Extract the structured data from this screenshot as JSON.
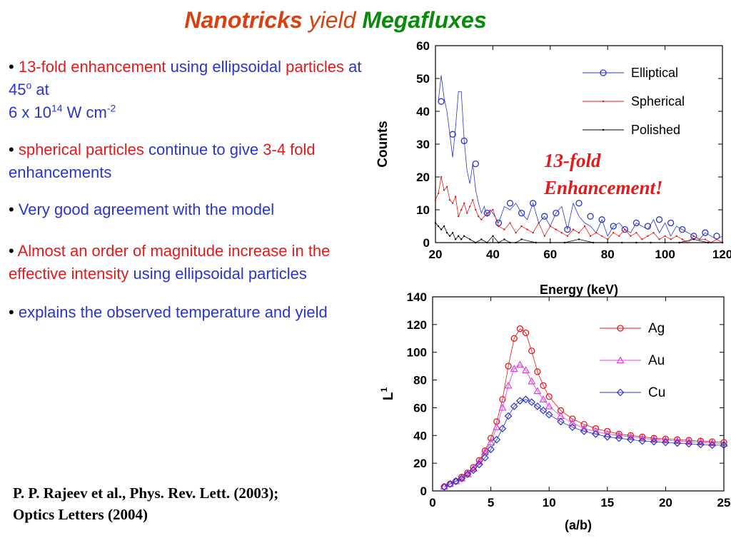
{
  "title": {
    "part1": "Nanotricks",
    "part2": "yield",
    "part3": "Megafluxes"
  },
  "bullets": {
    "b1": {
      "bullet": "•",
      "red1": "13-fold enhancement",
      "blue1": "using ellipsoidal",
      "red2": "particles",
      "blue2": "at 45",
      "sup1": "o",
      "blue3": "at",
      "blue4": "6 x 10",
      "sup2": "14",
      "blue5": "W cm",
      "sup3": "-2"
    },
    "b2": {
      "bullet": "•",
      "red1": "spherical particles",
      "blue1": "continue to give",
      "red2": "3-4 fold",
      "blue2": "enhancements"
    },
    "b3": {
      "bullet": "•",
      "blue1": "Very good agreement with the model"
    },
    "b4": {
      "bullet": "•",
      "red1": "Almost an order of magnitude increase in the effective intensity",
      "blue1": "using ellipsoidal particles"
    },
    "b5": {
      "bullet": "•",
      "blue1": "explains the observed temperature and yield"
    }
  },
  "reference": {
    "line1": "P. P. Rajeev et al., Phys. Rev. Lett. (2003);",
    "line2": "Optics Letters (2004)"
  },
  "annotation": {
    "line1": "13-fold",
    "line2": "Enhancement!"
  },
  "chart_data": [
    {
      "type": "line",
      "xlabel": "Energy (keV)",
      "ylabel": "Counts",
      "xlim": [
        20,
        120
      ],
      "ylim": [
        0,
        60
      ],
      "xticks": [
        20,
        40,
        60,
        80,
        100,
        120
      ],
      "yticks": [
        0,
        10,
        20,
        30,
        40,
        50,
        60
      ],
      "legend_position": "top-right",
      "series": [
        {
          "name": "Elliptical",
          "color": "#2b35c8",
          "marker": "circle",
          "x": [
            21,
            22,
            23,
            24,
            25,
            26,
            27,
            28,
            29,
            30,
            31,
            32,
            33,
            34,
            35,
            36,
            37,
            38,
            39,
            40,
            42,
            44,
            46,
            48,
            50,
            52,
            54,
            56,
            58,
            60,
            62,
            64,
            66,
            68,
            70,
            72,
            74,
            76,
            78,
            80,
            82,
            84,
            86,
            88,
            90,
            92,
            94,
            96,
            98,
            100,
            102,
            104,
            106,
            108,
            110,
            112,
            114,
            116,
            118,
            120
          ],
          "y": [
            43,
            51,
            44,
            40,
            33,
            26,
            35,
            46,
            46,
            31,
            22,
            18,
            24,
            16,
            12,
            9,
            11,
            8,
            10,
            9,
            6,
            11,
            10,
            12,
            9,
            7,
            12,
            6,
            8,
            5,
            9,
            11,
            4,
            12,
            8,
            6,
            5,
            3,
            7,
            2,
            5,
            6,
            4,
            3,
            6,
            5,
            4,
            7,
            3,
            6,
            2,
            5,
            4,
            3,
            2,
            1,
            3,
            2,
            1,
            2
          ],
          "marker_x": [
            22,
            26,
            30,
            34,
            38,
            42,
            46,
            50,
            54,
            58,
            62,
            66,
            70,
            74,
            78,
            82,
            86,
            90,
            94,
            98,
            102,
            106,
            110,
            114,
            118
          ],
          "marker_y": [
            43,
            33,
            31,
            24,
            9,
            6,
            12,
            9,
            12,
            8,
            9,
            4,
            12,
            8,
            7,
            5,
            4,
            6,
            5,
            7,
            6,
            4,
            2,
            3,
            2
          ]
        },
        {
          "name": "Spherical",
          "color": "#e31a1c",
          "marker": "dot",
          "x": [
            20,
            21,
            22,
            23,
            24,
            25,
            26,
            27,
            28,
            29,
            30,
            31,
            32,
            33,
            34,
            35,
            36,
            38,
            40,
            42,
            44,
            46,
            48,
            50,
            52,
            54,
            56,
            58,
            60,
            62,
            64,
            66,
            68,
            70,
            72,
            74,
            76,
            78,
            80,
            82,
            84,
            86,
            88,
            90,
            92,
            94,
            96,
            98,
            100,
            102,
            104,
            106,
            108,
            110,
            112,
            114,
            116,
            118,
            120
          ],
          "y": [
            13,
            15,
            20,
            16,
            17,
            13,
            12,
            14,
            8,
            10,
            12,
            9,
            11,
            13,
            10,
            8,
            7,
            9,
            10,
            5,
            4,
            6,
            3,
            5,
            4,
            3,
            6,
            2,
            5,
            4,
            3,
            2,
            4,
            3,
            5,
            2,
            3,
            2,
            1,
            3,
            2,
            4,
            2,
            3,
            1,
            2,
            3,
            1,
            2,
            1,
            2,
            1,
            0,
            2,
            1,
            1,
            0,
            1,
            0
          ]
        },
        {
          "name": "Polished",
          "color": "#000000",
          "marker": "dot",
          "x": [
            20,
            21,
            22,
            23,
            24,
            25,
            26,
            27,
            28,
            29,
            30,
            32,
            34,
            36,
            38,
            40,
            42,
            44,
            46,
            48,
            50,
            55,
            60,
            65,
            70,
            75,
            80,
            85,
            90,
            95,
            100,
            105,
            110,
            115,
            120
          ],
          "y": [
            6,
            5,
            4,
            5,
            3,
            2,
            3,
            1,
            2,
            1,
            2,
            1,
            0,
            1,
            0,
            2,
            0,
            1,
            0,
            0,
            1,
            0,
            0,
            0,
            1,
            0,
            0,
            0,
            0,
            0,
            0,
            0,
            1,
            0,
            0
          ]
        }
      ]
    },
    {
      "type": "line",
      "xlabel": "(a/b)",
      "ylabel": "L",
      "ylabel_sup": "1",
      "xlim": [
        0,
        25
      ],
      "ylim": [
        0,
        140
      ],
      "xticks": [
        0,
        5,
        10,
        15,
        20,
        25
      ],
      "yticks": [
        0,
        20,
        40,
        60,
        80,
        100,
        120,
        140
      ],
      "legend_position": "top-right",
      "series": [
        {
          "name": "Ag",
          "color": "#e31a1c",
          "marker": "circle",
          "x": [
            1,
            1.5,
            2,
            2.5,
            3,
            3.5,
            4,
            4.5,
            5,
            5.5,
            6,
            6.5,
            7,
            7.5,
            8,
            8.5,
            9,
            9.5,
            10,
            11,
            12,
            13,
            14,
            15,
            16,
            17,
            18,
            19,
            20,
            21,
            22,
            23,
            24,
            25
          ],
          "y": [
            3,
            5,
            7,
            10,
            13,
            17,
            22,
            29,
            38,
            50,
            66,
            90,
            110,
            117,
            114,
            101,
            86,
            76,
            68,
            58,
            52,
            48,
            45,
            43,
            41,
            40,
            39,
            38,
            37.5,
            37,
            36.5,
            36,
            35.5,
            35
          ]
        },
        {
          "name": "Au",
          "color": "#e040e0",
          "marker": "triangle",
          "x": [
            1,
            1.5,
            2,
            2.5,
            3,
            3.5,
            4,
            4.5,
            5,
            5.5,
            6,
            6.5,
            7,
            7.5,
            8,
            8.5,
            9,
            9.5,
            10,
            11,
            12,
            13,
            14,
            15,
            16,
            17,
            18,
            19,
            20,
            21,
            22,
            23,
            24,
            25
          ],
          "y": [
            3,
            5,
            7,
            9,
            12,
            16,
            21,
            28,
            35,
            46,
            60,
            76,
            88,
            91,
            87,
            79,
            72,
            66,
            61,
            54,
            49,
            45,
            43,
            41,
            40,
            39,
            38,
            37,
            36.5,
            36,
            35.5,
            35,
            34.5,
            34
          ]
        },
        {
          "name": "Cu",
          "color": "#2b35c8",
          "marker": "diamond",
          "x": [
            1,
            1.5,
            2,
            2.5,
            3,
            3.5,
            4,
            4.5,
            5,
            5.5,
            6,
            6.5,
            7,
            7.5,
            8,
            8.5,
            9,
            9.5,
            10,
            11,
            12,
            13,
            14,
            15,
            16,
            17,
            18,
            19,
            20,
            21,
            22,
            23,
            24,
            25
          ],
          "y": [
            3,
            5,
            7,
            9,
            12,
            15,
            19,
            24,
            30,
            37,
            45,
            54,
            61,
            65,
            66,
            64,
            61,
            58,
            55,
            50,
            46,
            43,
            41,
            39,
            38,
            37,
            36,
            35.5,
            35,
            34.5,
            34,
            33.5,
            33,
            33
          ]
        }
      ]
    }
  ]
}
